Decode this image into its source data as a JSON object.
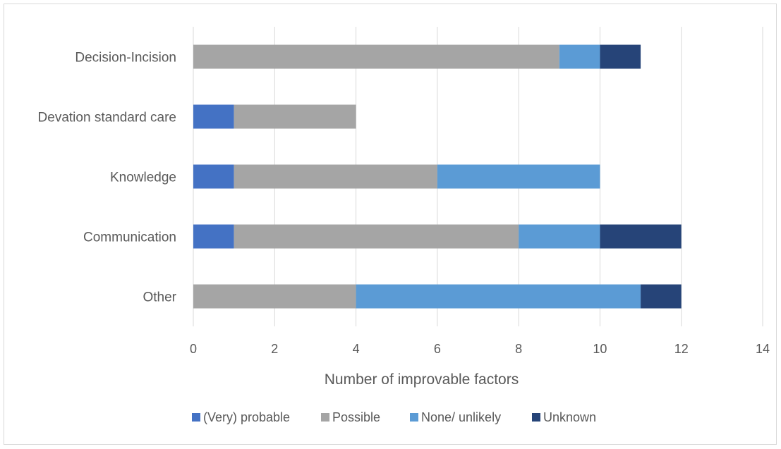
{
  "chart_data": {
    "type": "bar",
    "orientation": "horizontal",
    "stacked": true,
    "title": "",
    "xlabel": "Number of improvable factors",
    "ylabel": "",
    "xlim": [
      0,
      14
    ],
    "x_ticks": [
      "0",
      "2",
      "4",
      "6",
      "8",
      "10",
      "12",
      "14"
    ],
    "grid": true,
    "legend_position": "bottom",
    "categories": [
      "Decision-Incision",
      "Devation standard care",
      "Knowledge",
      "Communication",
      "Other"
    ],
    "series": [
      {
        "name": "(Very) probable",
        "color": "#4472c4",
        "values": [
          0,
          1,
          1,
          1,
          0
        ]
      },
      {
        "name": "Possible",
        "color": "#a5a5a5",
        "values": [
          9,
          3,
          5,
          7,
          4
        ]
      },
      {
        "name": "None/ unlikely",
        "color": "#5b9bd5",
        "values": [
          1,
          0,
          4,
          2,
          7
        ]
      },
      {
        "name": "Unknown",
        "color": "#264478",
        "values": [
          1,
          0,
          0,
          2,
          1
        ]
      }
    ]
  }
}
